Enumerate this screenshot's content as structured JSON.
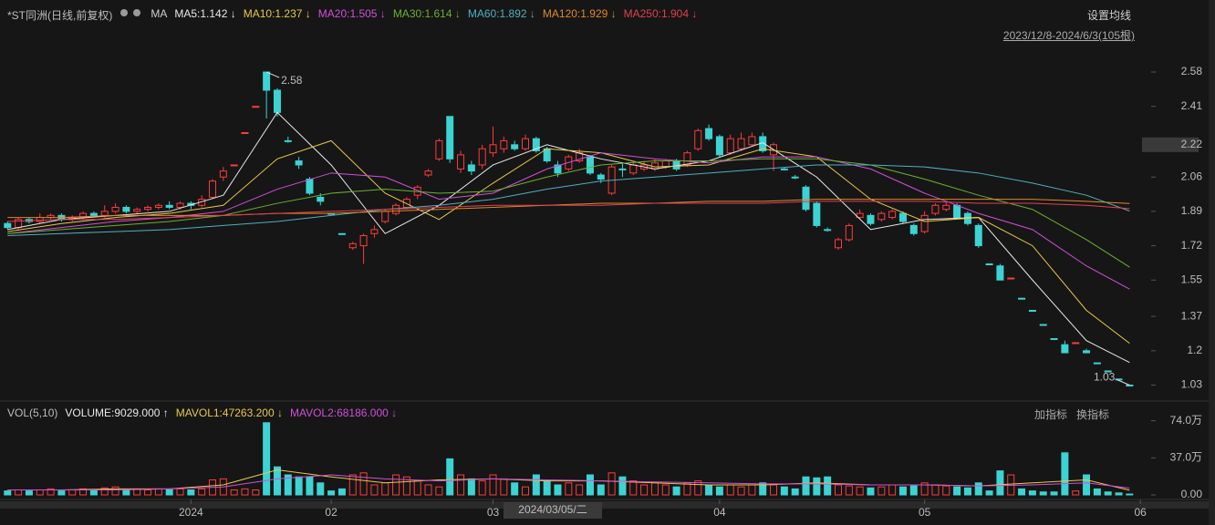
{
  "header": {
    "title": "*ST同洲(日线,前复权)",
    "ma_label": "MA",
    "settings": "设置均线",
    "range": "2023/12/8-2024/6/3(105根)",
    "vol_label": "VOL(5,10)",
    "add_indicator": "加指标",
    "switch_indicator": "换指标"
  },
  "chart_data": {
    "type": "candlestick",
    "xlim": [
      -0.7,
      106
    ],
    "xticks": [
      {
        "value": 17,
        "label": "2024"
      },
      {
        "value": 30,
        "label": "02"
      },
      {
        "value": 45,
        "label": "03"
      },
      {
        "value": 66,
        "label": "04"
      },
      {
        "value": 85,
        "label": "05"
      },
      {
        "value": 105,
        "label": "06"
      }
    ],
    "crosshair_label": "2024/03/05/二",
    "ylim": [
      0.96,
      2.72
    ],
    "yticks": [
      2.58,
      2.41,
      2.22,
      2.06,
      1.89,
      1.72,
      1.55,
      1.37,
      1.2,
      1.03
    ],
    "yticks_labels_fmt": null,
    "up_color": "#ff3b3b",
    "down_color": "#3dd3d3",
    "open": [
      1.83,
      1.81,
      1.85,
      1.84,
      1.86,
      1.87,
      1.85,
      1.86,
      1.88,
      1.87,
      1.89,
      1.91,
      1.89,
      1.9,
      1.91,
      1.92,
      1.91,
      1.93,
      1.92,
      1.96,
      2.06,
      2.12,
      2.28,
      2.41,
      2.58,
      2.49,
      2.24,
      2.14,
      2.05,
      1.96,
      1.88,
      1.78,
      1.71,
      1.72,
      1.78,
      1.84,
      1.88,
      1.91,
      1.97,
      2.07,
      2.15,
      2.36,
      2.1,
      2.12,
      2.12,
      2.18,
      2.2,
      2.22,
      2.2,
      2.25,
      2.2,
      2.12,
      2.1,
      2.14,
      2.16,
      2.07,
      1.98,
      2.1,
      2.08,
      2.1,
      2.1,
      2.11,
      2.14,
      2.12,
      2.2,
      2.3,
      2.26,
      2.18,
      2.2,
      2.22,
      2.26,
      2.17,
      2.1,
      2.06,
      2.01,
      1.93,
      1.8,
      1.71,
      1.75,
      1.86,
      1.87,
      1.85,
      1.86,
      1.88,
      1.82,
      1.79,
      1.88,
      1.9,
      1.92,
      1.88,
      1.82,
      1.63,
      1.62,
      1.56,
      1.46,
      1.4,
      1.33,
      1.26,
      1.23,
      1.24,
      1.2,
      1.14,
      1.1,
      1.06,
      1.03
    ],
    "high": [
      1.84,
      1.86,
      1.86,
      1.88,
      1.88,
      1.88,
      1.87,
      1.89,
      1.89,
      1.92,
      1.93,
      1.92,
      1.91,
      1.92,
      1.93,
      1.94,
      1.94,
      1.94,
      1.97,
      2.05,
      2.11,
      2.12,
      2.28,
      2.41,
      2.58,
      2.5,
      2.26,
      2.16,
      2.06,
      1.98,
      1.88,
      1.78,
      1.74,
      1.78,
      1.82,
      1.9,
      1.93,
      1.96,
      2.02,
      2.1,
      2.25,
      2.36,
      2.19,
      2.14,
      2.22,
      2.31,
      2.26,
      2.24,
      2.27,
      2.26,
      2.21,
      2.14,
      2.17,
      2.2,
      2.17,
      2.08,
      2.12,
      2.13,
      2.13,
      2.14,
      2.15,
      2.15,
      2.15,
      2.19,
      2.3,
      2.32,
      2.27,
      2.27,
      2.28,
      2.28,
      2.28,
      2.23,
      2.11,
      2.07,
      2.02,
      1.94,
      1.81,
      1.76,
      1.83,
      1.9,
      1.88,
      1.89,
      1.9,
      1.89,
      1.83,
      1.89,
      1.93,
      1.94,
      1.93,
      1.89,
      1.83,
      1.63,
      1.63,
      1.56,
      1.46,
      1.4,
      1.33,
      1.26,
      1.25,
      1.24,
      1.21,
      1.14,
      1.1,
      1.06,
      1.03
    ],
    "low": [
      1.8,
      1.8,
      1.83,
      1.83,
      1.85,
      1.84,
      1.84,
      1.85,
      1.86,
      1.86,
      1.88,
      1.88,
      1.88,
      1.89,
      1.9,
      1.9,
      1.9,
      1.9,
      1.91,
      1.95,
      2.04,
      2.12,
      2.28,
      2.41,
      2.35,
      2.36,
      2.23,
      2.1,
      1.97,
      1.92,
      1.88,
      1.78,
      1.7,
      1.63,
      1.76,
      1.83,
      1.87,
      1.9,
      1.95,
      2.06,
      2.14,
      2.13,
      2.08,
      2.07,
      2.1,
      2.16,
      2.18,
      2.19,
      2.19,
      2.18,
      2.13,
      2.06,
      2.09,
      2.13,
      2.07,
      2.03,
      1.97,
      2.06,
      2.07,
      2.09,
      2.09,
      2.1,
      2.09,
      2.11,
      2.19,
      2.24,
      2.16,
      2.17,
      2.19,
      2.21,
      2.18,
      2.09,
      2.1,
      2.05,
      1.89,
      1.81,
      1.79,
      1.7,
      1.74,
      1.85,
      1.82,
      1.84,
      1.85,
      1.83,
      1.77,
      1.78,
      1.87,
      1.89,
      1.85,
      1.82,
      1.71,
      1.63,
      1.55,
      1.56,
      1.46,
      1.4,
      1.33,
      1.26,
      1.19,
      1.24,
      1.19,
      1.14,
      1.1,
      1.06,
      1.03
    ],
    "close": [
      1.81,
      1.85,
      1.84,
      1.86,
      1.87,
      1.85,
      1.86,
      1.88,
      1.87,
      1.89,
      1.91,
      1.89,
      1.9,
      1.91,
      1.92,
      1.91,
      1.93,
      1.92,
      1.95,
      2.04,
      2.09,
      2.12,
      2.28,
      2.41,
      2.49,
      2.38,
      2.24,
      2.12,
      1.98,
      1.94,
      1.88,
      1.78,
      1.73,
      1.77,
      1.8,
      1.89,
      1.92,
      1.95,
      2.01,
      2.09,
      2.24,
      2.15,
      2.17,
      2.09,
      2.2,
      2.22,
      2.24,
      2.2,
      2.25,
      2.19,
      2.14,
      2.08,
      2.16,
      2.18,
      2.08,
      2.05,
      2.11,
      2.1,
      2.12,
      2.12,
      2.13,
      2.14,
      2.1,
      2.18,
      2.29,
      2.25,
      2.17,
      2.25,
      2.25,
      2.26,
      2.19,
      2.22,
      2.1,
      2.06,
      1.9,
      1.82,
      1.8,
      1.75,
      1.82,
      1.88,
      1.83,
      1.88,
      1.89,
      1.84,
      1.78,
      1.87,
      1.92,
      1.92,
      1.86,
      1.83,
      1.72,
      1.63,
      1.55,
      1.56,
      1.46,
      1.4,
      1.33,
      1.26,
      1.19,
      1.24,
      1.19,
      1.14,
      1.1,
      1.06,
      1.03
    ],
    "annotations": [
      {
        "text": "2.58",
        "index": 24,
        "value": 2.58
      },
      {
        "text": "1.03",
        "index": 104,
        "value": 1.03
      }
    ],
    "ma_x": [
      0,
      5,
      10,
      15,
      20,
      25,
      30,
      35,
      40,
      45,
      50,
      55,
      60,
      65,
      70,
      75,
      80,
      85,
      90,
      95,
      100,
      104
    ],
    "ma_series": [
      {
        "name": "MA5:1.142 ↓",
        "color": "#e8e8e8",
        "values": [
          1.8,
          1.85,
          1.87,
          1.89,
          1.97,
          2.38,
          2.12,
          1.78,
          1.92,
          2.12,
          2.22,
          2.15,
          2.1,
          2.14,
          2.23,
          2.06,
          1.8,
          1.85,
          1.86,
          1.55,
          1.25,
          1.142
        ]
      },
      {
        "name": "MA10:1.237 ↓",
        "color": "#e8c84a",
        "values": [
          1.79,
          1.83,
          1.86,
          1.88,
          1.92,
          2.15,
          2.24,
          1.98,
          1.85,
          2.03,
          2.2,
          2.18,
          2.11,
          2.12,
          2.2,
          2.16,
          1.95,
          1.84,
          1.86,
          1.72,
          1.4,
          1.237
        ]
      },
      {
        "name": "MA20:1.505 ↓",
        "color": "#d050d8",
        "values": [
          1.78,
          1.81,
          1.84,
          1.86,
          1.89,
          2.0,
          2.08,
          2.06,
          1.95,
          1.98,
          2.1,
          2.18,
          2.15,
          2.13,
          2.16,
          2.16,
          2.1,
          1.98,
          1.88,
          1.8,
          1.62,
          1.505
        ]
      },
      {
        "name": "MA30:1.614 ↓",
        "color": "#6cb030",
        "values": [
          1.78,
          1.8,
          1.82,
          1.84,
          1.87,
          1.93,
          1.98,
          2.0,
          1.98,
          1.99,
          2.06,
          2.12,
          2.14,
          2.14,
          2.15,
          2.15,
          2.12,
          2.05,
          1.97,
          1.9,
          1.75,
          1.614
        ]
      },
      {
        "name": "MA60:1.892 ↓",
        "color": "#4fb0c0",
        "values": [
          1.77,
          1.78,
          1.79,
          1.8,
          1.82,
          1.84,
          1.87,
          1.9,
          1.92,
          1.95,
          2.0,
          2.04,
          2.06,
          2.08,
          2.1,
          2.12,
          2.12,
          2.11,
          2.08,
          2.03,
          1.97,
          1.892
        ]
      },
      {
        "name": "MA120:1.929 ↓",
        "color": "#e0882a",
        "values": [
          1.86,
          1.86,
          1.87,
          1.87,
          1.87,
          1.88,
          1.88,
          1.89,
          1.9,
          1.91,
          1.92,
          1.93,
          1.93,
          1.94,
          1.94,
          1.95,
          1.95,
          1.95,
          1.95,
          1.95,
          1.94,
          1.929
        ]
      },
      {
        "name": "MA250:1.904 ↓",
        "color": "#e04050",
        "values": [
          1.84,
          1.85,
          1.85,
          1.86,
          1.87,
          1.88,
          1.89,
          1.9,
          1.91,
          1.92,
          1.92,
          1.92,
          1.93,
          1.93,
          1.93,
          1.94,
          1.94,
          1.94,
          1.93,
          1.93,
          1.92,
          1.904
        ]
      }
    ],
    "volume": {
      "name": "VOLUME:9029.000 ↑",
      "ylim": [
        0,
        80
      ],
      "yticks": [
        {
          "value": 74,
          "label": "74.0万"
        },
        {
          "value": 37,
          "label": "37.0万"
        },
        {
          "value": 0,
          "label": "0.00"
        }
      ],
      "values": [
        4,
        5,
        4,
        5,
        6,
        4,
        5,
        6,
        5,
        7,
        8,
        5,
        6,
        5,
        6,
        5,
        6,
        5,
        6,
        15,
        16,
        5,
        6,
        5,
        72,
        28,
        20,
        18,
        18,
        12,
        4,
        6,
        20,
        22,
        10,
        12,
        20,
        18,
        14,
        10,
        8,
        36,
        20,
        16,
        14,
        20,
        16,
        12,
        8,
        20,
        14,
        10,
        12,
        10,
        20,
        10,
        22,
        18,
        14,
        10,
        12,
        10,
        8,
        12,
        14,
        10,
        8,
        10,
        8,
        10,
        12,
        10,
        8,
        6,
        18,
        17,
        18,
        10,
        9,
        8,
        7,
        8,
        10,
        8,
        9,
        12,
        10,
        9,
        8,
        7,
        12,
        4,
        24,
        20,
        6,
        4,
        3,
        3,
        42,
        4,
        20,
        6,
        3,
        2,
        0.9
      ],
      "series": [
        {
          "name": "MAVOL1:47263.200 ↓",
          "color": "#e8c84a",
          "values": [
            5,
            5,
            6,
            6,
            10,
            25,
            18,
            12,
            15,
            16,
            14,
            14,
            12,
            10,
            10,
            12,
            10,
            10,
            9,
            12,
            15,
            4.7
          ]
        },
        {
          "name": "MAVOL2:68186.000 ↓",
          "color": "#d050d8",
          "values": [
            5,
            5,
            5,
            6,
            8,
            16,
            20,
            16,
            14,
            16,
            15,
            14,
            13,
            12,
            11,
            11,
            10,
            10,
            9,
            10,
            12,
            6.8
          ]
        }
      ]
    }
  }
}
